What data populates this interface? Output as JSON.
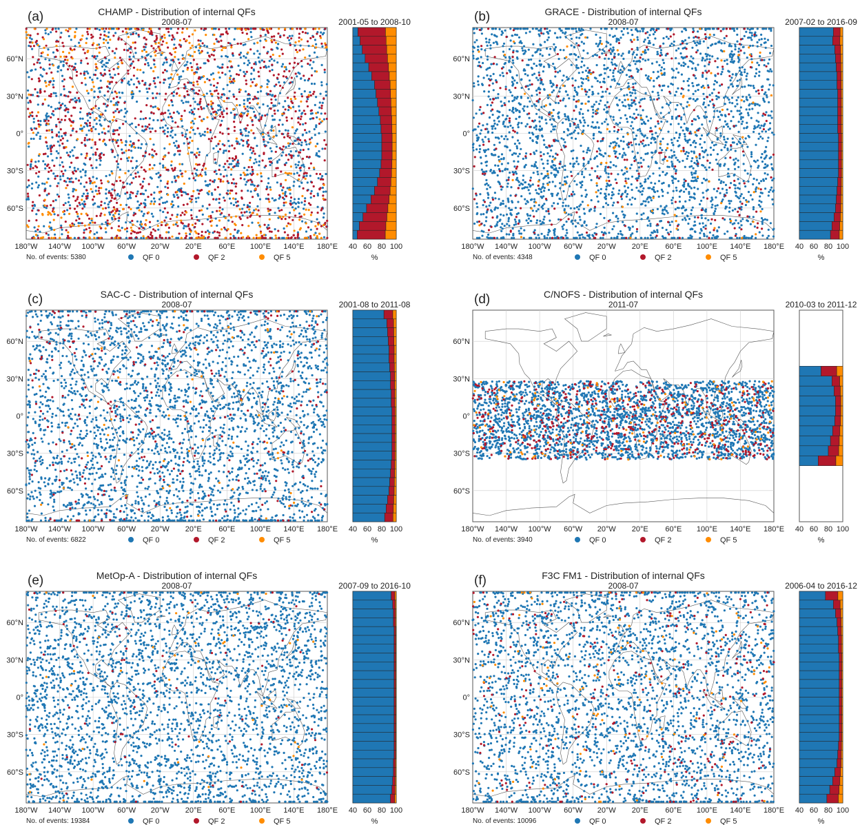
{
  "colors": {
    "qf0": "#1f77b4",
    "qf2": "#b2182b",
    "qf5": "#ff8c00",
    "grid": "#cccccc",
    "coast": "#555555"
  },
  "chart_data": [
    {
      "type": "scatter+stacked-bar",
      "panel_label": "(a)",
      "title": "CHAMP - Distribution of internal QFs",
      "subtitle": "2008-07",
      "bar_title": "2001-05 to 2008-10",
      "events_text": "No. of events: 5380",
      "dot_count": 5380,
      "density": {
        "qf0": 0.55,
        "qf2": 0.35,
        "qf5": 0.1,
        "polar_qf5_boost": true
      },
      "lat_range": [
        -90,
        90
      ],
      "bar_lat_range": [
        -90,
        90
      ],
      "bar_qf0": [
        47,
        50,
        53,
        57,
        62,
        66,
        70,
        72,
        74,
        76,
        78,
        79,
        80,
        80,
        80,
        79,
        77,
        74,
        70,
        65,
        59,
        54,
        49,
        46
      ]
    },
    {
      "type": "scatter+stacked-bar",
      "panel_label": "(b)",
      "title": "GRACE - Distribution of internal QFs",
      "subtitle": "2008-07",
      "bar_title": "2007-02 to 2016-09",
      "events_text": "No. of events: 4348",
      "dot_count": 4348,
      "density": {
        "qf0": 0.88,
        "qf2": 0.09,
        "qf5": 0.03
      },
      "lat_range": [
        -90,
        90
      ],
      "bar_lat_range": [
        -90,
        90
      ],
      "bar_qf0": [
        87,
        86,
        89,
        90,
        91,
        92,
        92,
        93,
        93,
        93,
        93,
        93,
        94,
        94,
        94,
        94,
        94,
        93,
        92,
        91,
        90,
        88,
        85,
        83
      ]
    },
    {
      "type": "scatter+stacked-bar",
      "panel_label": "(c)",
      "title": "SAC-C - Distribution of internal QFs",
      "subtitle": "2008-07",
      "bar_title": "2001-08 to 2011-08",
      "events_text": "No. of events: 6822",
      "dot_count": 6822,
      "density": {
        "qf0": 0.9,
        "qf2": 0.08,
        "qf5": 0.02
      },
      "lat_range": [
        -90,
        90
      ],
      "bar_lat_range": [
        -90,
        90
      ],
      "bar_qf0": [
        83,
        87,
        88,
        89,
        90,
        90,
        91,
        92,
        92,
        93,
        93,
        94,
        94,
        94,
        94,
        94,
        94,
        93,
        92,
        91,
        90,
        88,
        86,
        84
      ]
    },
    {
      "type": "scatter+stacked-bar",
      "panel_label": "(d)",
      "title": "C/NOFS - Distribution of internal QFs",
      "subtitle": "2011-07",
      "bar_title": "2010-03 to 2011-12",
      "events_text": "No. of events: 3940",
      "dot_count": 3940,
      "density": {
        "qf0": 0.8,
        "qf2": 0.16,
        "qf5": 0.04
      },
      "lat_range": [
        -35,
        28
      ],
      "bar_lat_range": [
        -40,
        40
      ],
      "bar_qf0": [
        70,
        85,
        88,
        90,
        90,
        89,
        86,
        83,
        80,
        66
      ]
    },
    {
      "type": "scatter+stacked-bar",
      "panel_label": "(e)",
      "title": "MetOp-A - Distribution of internal QFs",
      "subtitle": "2008-07",
      "bar_title": "2007-09 to 2016-10",
      "events_text": "No. of events: 19384",
      "dot_count": 19384,
      "density": {
        "qf0": 0.96,
        "qf2": 0.025,
        "qf5": 0.015
      },
      "lat_range": [
        -90,
        90
      ],
      "bar_lat_range": [
        -90,
        90
      ],
      "bar_qf0": [
        93,
        95,
        96,
        96,
        97,
        97,
        97,
        97,
        97,
        97,
        97,
        97,
        97,
        97,
        97,
        97,
        97,
        97,
        97,
        96,
        96,
        95,
        94,
        92
      ]
    },
    {
      "type": "scatter+stacked-bar",
      "panel_label": "(f)",
      "title": "F3C FM1 - Distribution of internal QFs",
      "subtitle": "2008-07",
      "bar_title": "2006-04 to 2016-12",
      "events_text": "No. of events: 10096",
      "dot_count": 10096,
      "density": {
        "qf0": 0.9,
        "qf2": 0.07,
        "qf5": 0.03
      },
      "lat_range": [
        -90,
        90
      ],
      "bar_lat_range": [
        -90,
        90
      ],
      "bar_qf0": [
        76,
        87,
        90,
        92,
        93,
        94,
        94,
        95,
        95,
        95,
        95,
        95,
        95,
        95,
        95,
        95,
        95,
        94,
        93,
        92,
        89,
        86,
        82,
        78
      ]
    }
  ],
  "axis": {
    "x_ticks": [
      "180°W",
      "140°W",
      "100°W",
      "60°W",
      "20°W",
      "20°E",
      "60°E",
      "100°E",
      "140°E",
      "180°E"
    ],
    "x_values": [
      -180,
      -140,
      -100,
      -60,
      -20,
      20,
      60,
      100,
      140,
      180
    ],
    "y_ticks": [
      "60°N",
      "30°N",
      "0°",
      "30°S",
      "60°S"
    ],
    "y_values": [
      60,
      30,
      0,
      -30,
      -60
    ],
    "bar_ticks": [
      "40",
      "60",
      "80",
      "100"
    ],
    "bar_values": [
      40,
      60,
      80,
      100
    ],
    "bar_xlabel": "%"
  },
  "legend": [
    {
      "label": "QF 0",
      "color": "#1f77b4"
    },
    {
      "label": "QF 2",
      "color": "#b2182b"
    },
    {
      "label": "QF 5",
      "color": "#ff8c00"
    }
  ]
}
